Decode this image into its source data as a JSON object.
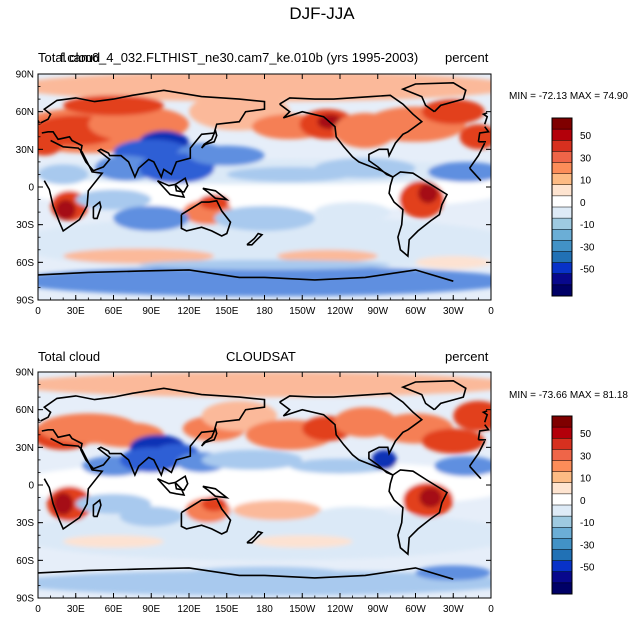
{
  "title": "DJF-JJA",
  "panels": [
    {
      "left_label": "Total cloud",
      "center_label": "f.cam6_4_032.FLTHIST_ne30.cam7_ke.010b (yrs 1995-2003)",
      "right_label": "percent",
      "stats": "MIN = -72.13 MAX =  74.90"
    },
    {
      "left_label": "Total cloud",
      "center_label": "CLOUDSAT",
      "right_label": "percent",
      "stats": "MIN = -73.66 MAX =  81.18"
    }
  ],
  "lat_ticks": [
    "90N",
    "60N",
    "30N",
    "0",
    "30S",
    "60S",
    "90S"
  ],
  "lon_ticks": [
    "0",
    "30E",
    "60E",
    "90E",
    "120E",
    "150E",
    "180",
    "150W",
    "120W",
    "90W",
    "60W",
    "30W",
    "0"
  ],
  "colorbar": {
    "labels": [
      "50",
      "30",
      "10",
      "0",
      "-10",
      "-30",
      "-50"
    ],
    "colors": [
      "#7f0000",
      "#b3000a",
      "#d7301f",
      "#ef6548",
      "#fc8d59",
      "#fdbb84",
      "#fee4d0",
      "#ffffff",
      "#deebf7",
      "#9ecae1",
      "#6baed6",
      "#4292c6",
      "#2171b5",
      "#0832c8",
      "#08088c",
      "#000066"
    ]
  },
  "palette": {
    "deep_red": "#a50f15",
    "red": "#e2401f",
    "orange": "#f57f55",
    "peach": "#fbb99a",
    "pale": "#fde2d2",
    "white": "#ffffff",
    "ice": "#dbe9f7",
    "light_blue": "#a8c9ee",
    "blue": "#5f8fe0",
    "mid_blue": "#2e5fd5",
    "deep_blue": "#1030b5"
  }
}
